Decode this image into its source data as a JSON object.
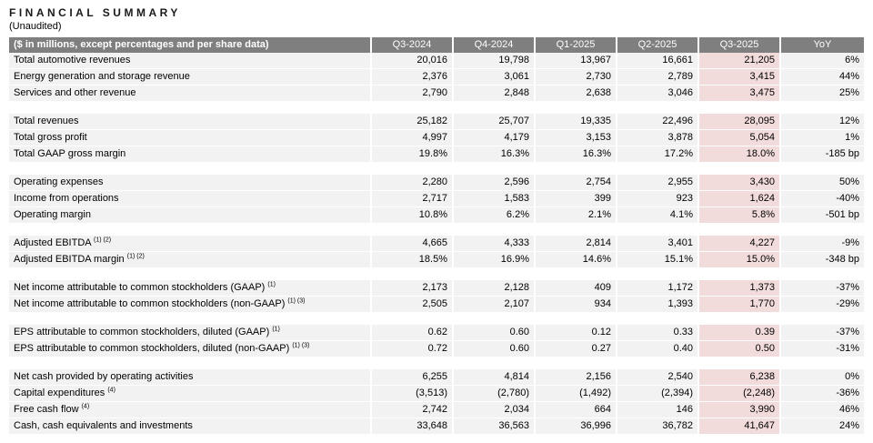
{
  "page": {
    "title": "FINANCIAL SUMMARY",
    "subtitle": "(Unaudited)"
  },
  "table": {
    "label_header": "($ in millions, except percentages and per share data)",
    "columns": [
      "Q3-2024",
      "Q4-2024",
      "Q1-2025",
      "Q2-2025",
      "Q3-2025",
      "YoY"
    ],
    "highlight_column": "Q3-2025",
    "colors": {
      "header_bg": "#7f7f7f",
      "header_text": "#ffffff",
      "row_bg": "#f2f2f2",
      "highlight_bg": "#f2dcdb"
    },
    "sections": [
      {
        "rows": [
          {
            "label": "Total automotive revenues",
            "sup": "",
            "values": [
              "20,016",
              "19,798",
              "13,967",
              "16,661",
              "21,205",
              "6%"
            ]
          },
          {
            "label": "Energy generation and storage revenue",
            "sup": "",
            "values": [
              "2,376",
              "3,061",
              "2,730",
              "2,789",
              "3,415",
              "44%"
            ]
          },
          {
            "label": "Services and other revenue",
            "sup": "",
            "values": [
              "2,790",
              "2,848",
              "2,638",
              "3,046",
              "3,475",
              "25%"
            ]
          }
        ]
      },
      {
        "rows": [
          {
            "label": "Total revenues",
            "sup": "",
            "values": [
              "25,182",
              "25,707",
              "19,335",
              "22,496",
              "28,095",
              "12%"
            ]
          },
          {
            "label": "Total gross profit",
            "sup": "",
            "values": [
              "4,997",
              "4,179",
              "3,153",
              "3,878",
              "5,054",
              "1%"
            ]
          },
          {
            "label": "Total GAAP gross margin",
            "sup": "",
            "values": [
              "19.8%",
              "16.3%",
              "16.3%",
              "17.2%",
              "18.0%",
              "-185 bp"
            ]
          }
        ]
      },
      {
        "rows": [
          {
            "label": "Operating expenses",
            "sup": "",
            "values": [
              "2,280",
              "2,596",
              "2,754",
              "2,955",
              "3,430",
              "50%"
            ]
          },
          {
            "label": "Income from operations",
            "sup": "",
            "values": [
              "2,717",
              "1,583",
              "399",
              "923",
              "1,624",
              "-40%"
            ]
          },
          {
            "label": "Operating margin",
            "sup": "",
            "values": [
              "10.8%",
              "6.2%",
              "2.1%",
              "4.1%",
              "5.8%",
              "-501 bp"
            ]
          }
        ]
      },
      {
        "rows": [
          {
            "label": "Adjusted EBITDA",
            "sup": "(1) (2)",
            "values": [
              "4,665",
              "4,333",
              "2,814",
              "3,401",
              "4,227",
              "-9%"
            ]
          },
          {
            "label": "Adjusted EBITDA margin",
            "sup": "(1) (2)",
            "values": [
              "18.5%",
              "16.9%",
              "14.6%",
              "15.1%",
              "15.0%",
              "-348 bp"
            ]
          }
        ]
      },
      {
        "rows": [
          {
            "label": "Net income attributable to common stockholders (GAAP)",
            "sup": "(1)",
            "values": [
              "2,173",
              "2,128",
              "409",
              "1,172",
              "1,373",
              "-37%"
            ]
          },
          {
            "label": "Net income attributable to common stockholders (non-GAAP)",
            "sup": "(1) (3)",
            "values": [
              "2,505",
              "2,107",
              "934",
              "1,393",
              "1,770",
              "-29%"
            ]
          }
        ]
      },
      {
        "rows": [
          {
            "label": "EPS attributable to common stockholders, diluted (GAAP)",
            "sup": "(1)",
            "values": [
              "0.62",
              "0.60",
              "0.12",
              "0.33",
              "0.39",
              "-37%"
            ]
          },
          {
            "label": "EPS attributable to common stockholders, diluted (non-GAAP)",
            "sup": "(1) (3)",
            "values": [
              "0.72",
              "0.60",
              "0.27",
              "0.40",
              "0.50",
              "-31%"
            ]
          }
        ]
      },
      {
        "rows": [
          {
            "label": "Net cash provided by operating activities",
            "sup": "",
            "values": [
              "6,255",
              "4,814",
              "2,156",
              "2,540",
              "6,238",
              "0%"
            ]
          },
          {
            "label": "Capital expenditures",
            "sup": "(4)",
            "values": [
              "(3,513)",
              "(2,780)",
              "(1,492)",
              "(2,394)",
              "(2,248)",
              "-36%"
            ]
          },
          {
            "label": "Free cash flow",
            "sup": "(4)",
            "values": [
              "2,742",
              "2,034",
              "664",
              "146",
              "3,990",
              "46%"
            ]
          },
          {
            "label": "Cash, cash equivalents and investments",
            "sup": "",
            "values": [
              "33,648",
              "36,563",
              "36,996",
              "36,782",
              "41,647",
              "24%"
            ]
          }
        ]
      }
    ]
  }
}
